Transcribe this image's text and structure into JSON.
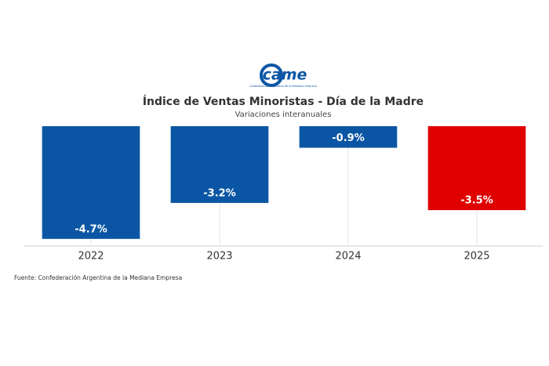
{
  "logo": {
    "text": "came",
    "caption": "Confederación Argentina de la Mediana Empresa"
  },
  "chart_data": {
    "type": "bar",
    "title": "Índice de Ventas Minoristas - Día de la Madre",
    "subtitle": "Variaciones interanuales",
    "categories": [
      "2022",
      "2023",
      "2024",
      "2025"
    ],
    "values": [
      -4.7,
      -3.2,
      -0.9,
      -3.5
    ],
    "value_labels": [
      "-4.7%",
      "-3.2%",
      "-0.9%",
      "-3.5%"
    ],
    "colors": [
      "#0b56a4",
      "#0b56a4",
      "#0b56a4",
      "#e00000"
    ],
    "ylim": [
      -5,
      0
    ],
    "source": "Fuente: Confederación Argentina de la Mediana Empresa"
  }
}
